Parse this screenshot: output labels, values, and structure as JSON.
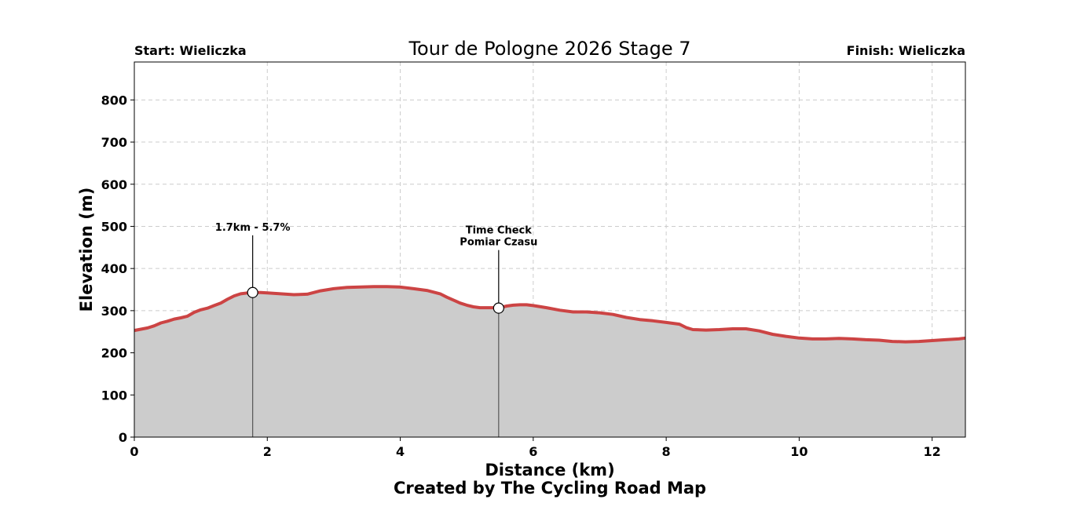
{
  "chart_data": {
    "type": "area",
    "title": "Tour de Pologne 2026 Stage 7",
    "start_label": "Start: Wieliczka",
    "finish_label": "Finish: Wieliczka",
    "xlabel": "Distance (km)",
    "ylabel": "Elevation (m)",
    "credit": "Created by The Cycling Road Map",
    "xlim": [
      0,
      12.5
    ],
    "ylim": [
      0,
      890
    ],
    "xticks": [
      0,
      2,
      4,
      6,
      8,
      10,
      12
    ],
    "yticks": [
      0,
      100,
      200,
      300,
      400,
      500,
      600,
      700,
      800
    ],
    "grid": true,
    "line_color": "#cc4444",
    "fill_color": "#cccccc",
    "series": [
      {
        "x": [
          0,
          0.1,
          0.2,
          0.3,
          0.4,
          0.5,
          0.6,
          0.7,
          0.8,
          0.9,
          1.0,
          1.1,
          1.2,
          1.3,
          1.4,
          1.5,
          1.6,
          1.7,
          1.8,
          1.9,
          2.0,
          2.2,
          2.4,
          2.6,
          2.8,
          3.0,
          3.2,
          3.4,
          3.6,
          3.8,
          4.0,
          4.2,
          4.4,
          4.6,
          4.7,
          4.8,
          4.9,
          5.0,
          5.1,
          5.2,
          5.3,
          5.4,
          5.5,
          5.6,
          5.7,
          5.8,
          5.9,
          6.0,
          6.2,
          6.4,
          6.6,
          6.8,
          7.0,
          7.2,
          7.4,
          7.6,
          7.8,
          8.0,
          8.2,
          8.3,
          8.4,
          8.6,
          8.8,
          9.0,
          9.2,
          9.4,
          9.6,
          9.8,
          10.0,
          10.2,
          10.4,
          10.6,
          10.8,
          11.0,
          11.2,
          11.4,
          11.6,
          11.8,
          12.0,
          12.2,
          12.4,
          12.5
        ],
        "y": [
          253,
          256,
          259,
          264,
          271,
          275,
          280,
          283,
          287,
          296,
          302,
          306,
          312,
          318,
          327,
          335,
          340,
          342,
          343,
          343,
          342,
          340,
          338,
          339,
          347,
          352,
          355,
          356,
          357,
          357,
          356,
          352,
          348,
          340,
          332,
          325,
          318,
          313,
          309,
          307,
          307,
          307,
          307,
          311,
          313,
          314,
          314,
          312,
          307,
          301,
          297,
          297,
          295,
          291,
          284,
          279,
          276,
          272,
          268,
          260,
          255,
          254,
          255,
          257,
          257,
          252,
          244,
          239,
          235,
          233,
          233,
          234,
          233,
          231,
          230,
          227,
          226,
          227,
          229,
          231,
          233,
          235
        ]
      }
    ],
    "annotations": [
      {
        "x": 1.78,
        "y": 343,
        "label_y": 490,
        "lines": [
          "1.7km - 5.7%"
        ]
      },
      {
        "x": 5.48,
        "y": 306,
        "label_y": 455,
        "lines": [
          "Time Check",
          "Pomiar Czasu"
        ]
      }
    ]
  }
}
